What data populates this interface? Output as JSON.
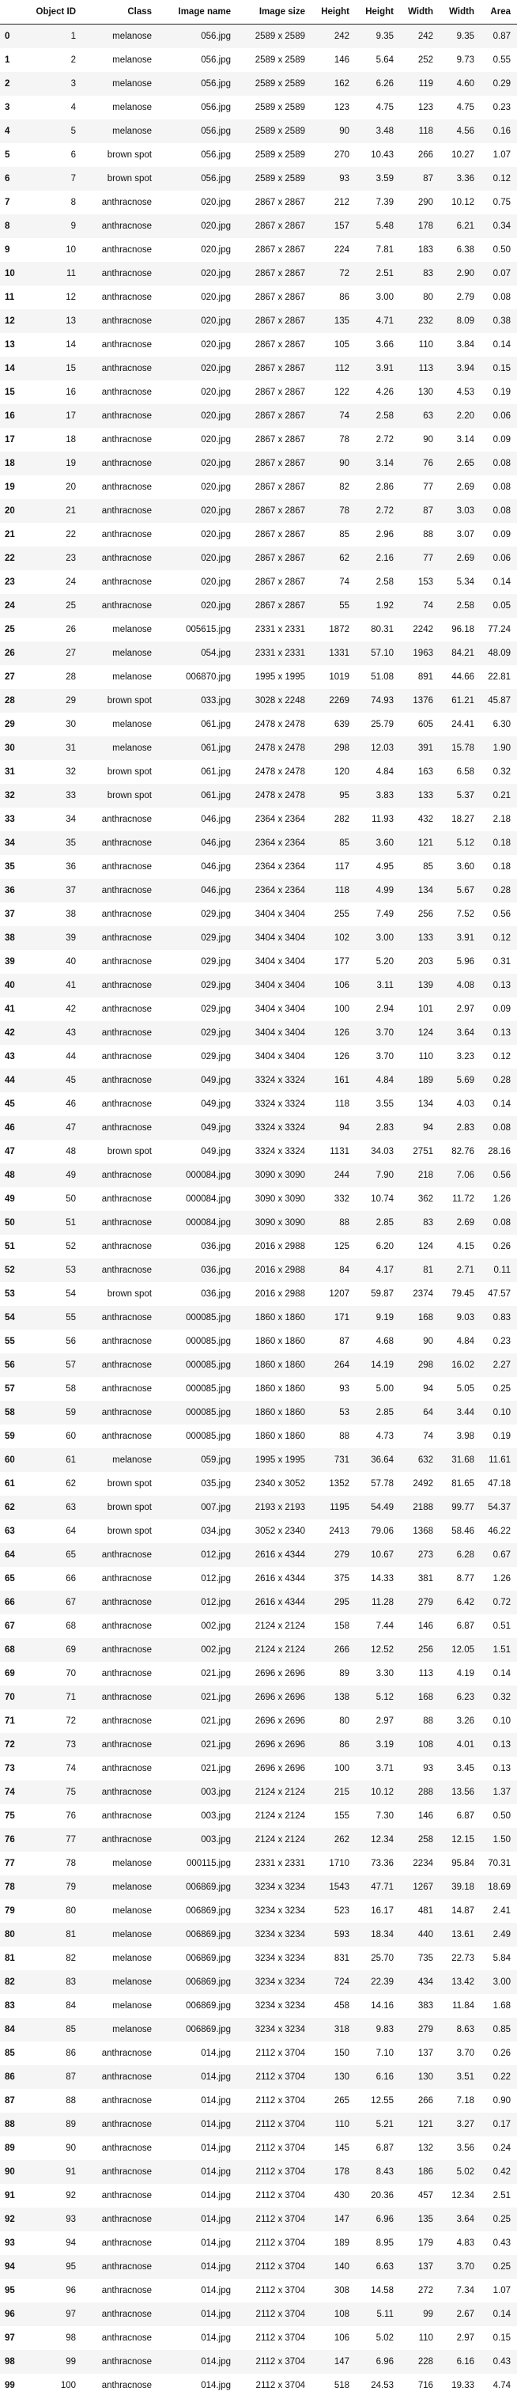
{
  "table": {
    "headers": [
      "",
      "Object ID",
      "Class",
      "Image name",
      "Image size",
      "Height",
      "Height",
      "Width",
      "Width",
      "Area"
    ],
    "rows": [
      [
        "0",
        "1",
        "melanose",
        "056.jpg",
        "2589 x 2589",
        "242",
        "9.35",
        "242",
        "9.35",
        "0.87"
      ],
      [
        "1",
        "2",
        "melanose",
        "056.jpg",
        "2589 x 2589",
        "146",
        "5.64",
        "252",
        "9.73",
        "0.55"
      ],
      [
        "2",
        "3",
        "melanose",
        "056.jpg",
        "2589 x 2589",
        "162",
        "6.26",
        "119",
        "4.60",
        "0.29"
      ],
      [
        "3",
        "4",
        "melanose",
        "056.jpg",
        "2589 x 2589",
        "123",
        "4.75",
        "123",
        "4.75",
        "0.23"
      ],
      [
        "4",
        "5",
        "melanose",
        "056.jpg",
        "2589 x 2589",
        "90",
        "3.48",
        "118",
        "4.56",
        "0.16"
      ],
      [
        "5",
        "6",
        "brown spot",
        "056.jpg",
        "2589 x 2589",
        "270",
        "10.43",
        "266",
        "10.27",
        "1.07"
      ],
      [
        "6",
        "7",
        "brown spot",
        "056.jpg",
        "2589 x 2589",
        "93",
        "3.59",
        "87",
        "3.36",
        "0.12"
      ],
      [
        "7",
        "8",
        "anthracnose",
        "020.jpg",
        "2867 x 2867",
        "212",
        "7.39",
        "290",
        "10.12",
        "0.75"
      ],
      [
        "8",
        "9",
        "anthracnose",
        "020.jpg",
        "2867 x 2867",
        "157",
        "5.48",
        "178",
        "6.21",
        "0.34"
      ],
      [
        "9",
        "10",
        "anthracnose",
        "020.jpg",
        "2867 x 2867",
        "224",
        "7.81",
        "183",
        "6.38",
        "0.50"
      ],
      [
        "10",
        "11",
        "anthracnose",
        "020.jpg",
        "2867 x 2867",
        "72",
        "2.51",
        "83",
        "2.90",
        "0.07"
      ],
      [
        "11",
        "12",
        "anthracnose",
        "020.jpg",
        "2867 x 2867",
        "86",
        "3.00",
        "80",
        "2.79",
        "0.08"
      ],
      [
        "12",
        "13",
        "anthracnose",
        "020.jpg",
        "2867 x 2867",
        "135",
        "4.71",
        "232",
        "8.09",
        "0.38"
      ],
      [
        "13",
        "14",
        "anthracnose",
        "020.jpg",
        "2867 x 2867",
        "105",
        "3.66",
        "110",
        "3.84",
        "0.14"
      ],
      [
        "14",
        "15",
        "anthracnose",
        "020.jpg",
        "2867 x 2867",
        "112",
        "3.91",
        "113",
        "3.94",
        "0.15"
      ],
      [
        "15",
        "16",
        "anthracnose",
        "020.jpg",
        "2867 x 2867",
        "122",
        "4.26",
        "130",
        "4.53",
        "0.19"
      ],
      [
        "16",
        "17",
        "anthracnose",
        "020.jpg",
        "2867 x 2867",
        "74",
        "2.58",
        "63",
        "2.20",
        "0.06"
      ],
      [
        "17",
        "18",
        "anthracnose",
        "020.jpg",
        "2867 x 2867",
        "78",
        "2.72",
        "90",
        "3.14",
        "0.09"
      ],
      [
        "18",
        "19",
        "anthracnose",
        "020.jpg",
        "2867 x 2867",
        "90",
        "3.14",
        "76",
        "2.65",
        "0.08"
      ],
      [
        "19",
        "20",
        "anthracnose",
        "020.jpg",
        "2867 x 2867",
        "82",
        "2.86",
        "77",
        "2.69",
        "0.08"
      ],
      [
        "20",
        "21",
        "anthracnose",
        "020.jpg",
        "2867 x 2867",
        "78",
        "2.72",
        "87",
        "3.03",
        "0.08"
      ],
      [
        "21",
        "22",
        "anthracnose",
        "020.jpg",
        "2867 x 2867",
        "85",
        "2.96",
        "88",
        "3.07",
        "0.09"
      ],
      [
        "22",
        "23",
        "anthracnose",
        "020.jpg",
        "2867 x 2867",
        "62",
        "2.16",
        "77",
        "2.69",
        "0.06"
      ],
      [
        "23",
        "24",
        "anthracnose",
        "020.jpg",
        "2867 x 2867",
        "74",
        "2.58",
        "153",
        "5.34",
        "0.14"
      ],
      [
        "24",
        "25",
        "anthracnose",
        "020.jpg",
        "2867 x 2867",
        "55",
        "1.92",
        "74",
        "2.58",
        "0.05"
      ],
      [
        "25",
        "26",
        "melanose",
        "005615.jpg",
        "2331 x 2331",
        "1872",
        "80.31",
        "2242",
        "96.18",
        "77.24"
      ],
      [
        "26",
        "27",
        "melanose",
        "054.jpg",
        "2331 x 2331",
        "1331",
        "57.10",
        "1963",
        "84.21",
        "48.09"
      ],
      [
        "27",
        "28",
        "melanose",
        "006870.jpg",
        "1995 x 1995",
        "1019",
        "51.08",
        "891",
        "44.66",
        "22.81"
      ],
      [
        "28",
        "29",
        "brown spot",
        "033.jpg",
        "3028 x 2248",
        "2269",
        "74.93",
        "1376",
        "61.21",
        "45.87"
      ],
      [
        "29",
        "30",
        "melanose",
        "061.jpg",
        "2478 x 2478",
        "639",
        "25.79",
        "605",
        "24.41",
        "6.30"
      ],
      [
        "30",
        "31",
        "melanose",
        "061.jpg",
        "2478 x 2478",
        "298",
        "12.03",
        "391",
        "15.78",
        "1.90"
      ],
      [
        "31",
        "32",
        "brown spot",
        "061.jpg",
        "2478 x 2478",
        "120",
        "4.84",
        "163",
        "6.58",
        "0.32"
      ],
      [
        "32",
        "33",
        "brown spot",
        "061.jpg",
        "2478 x 2478",
        "95",
        "3.83",
        "133",
        "5.37",
        "0.21"
      ],
      [
        "33",
        "34",
        "anthracnose",
        "046.jpg",
        "2364 x 2364",
        "282",
        "11.93",
        "432",
        "18.27",
        "2.18"
      ],
      [
        "34",
        "35",
        "anthracnose",
        "046.jpg",
        "2364 x 2364",
        "85",
        "3.60",
        "121",
        "5.12",
        "0.18"
      ],
      [
        "35",
        "36",
        "anthracnose",
        "046.jpg",
        "2364 x 2364",
        "117",
        "4.95",
        "85",
        "3.60",
        "0.18"
      ],
      [
        "36",
        "37",
        "anthracnose",
        "046.jpg",
        "2364 x 2364",
        "118",
        "4.99",
        "134",
        "5.67",
        "0.28"
      ],
      [
        "37",
        "38",
        "anthracnose",
        "029.jpg",
        "3404 x 3404",
        "255",
        "7.49",
        "256",
        "7.52",
        "0.56"
      ],
      [
        "38",
        "39",
        "anthracnose",
        "029.jpg",
        "3404 x 3404",
        "102",
        "3.00",
        "133",
        "3.91",
        "0.12"
      ],
      [
        "39",
        "40",
        "anthracnose",
        "029.jpg",
        "3404 x 3404",
        "177",
        "5.20",
        "203",
        "5.96",
        "0.31"
      ],
      [
        "40",
        "41",
        "anthracnose",
        "029.jpg",
        "3404 x 3404",
        "106",
        "3.11",
        "139",
        "4.08",
        "0.13"
      ],
      [
        "41",
        "42",
        "anthracnose",
        "029.jpg",
        "3404 x 3404",
        "100",
        "2.94",
        "101",
        "2.97",
        "0.09"
      ],
      [
        "42",
        "43",
        "anthracnose",
        "029.jpg",
        "3404 x 3404",
        "126",
        "3.70",
        "124",
        "3.64",
        "0.13"
      ],
      [
        "43",
        "44",
        "anthracnose",
        "029.jpg",
        "3404 x 3404",
        "126",
        "3.70",
        "110",
        "3.23",
        "0.12"
      ],
      [
        "44",
        "45",
        "anthracnose",
        "049.jpg",
        "3324 x 3324",
        "161",
        "4.84",
        "189",
        "5.69",
        "0.28"
      ],
      [
        "45",
        "46",
        "anthracnose",
        "049.jpg",
        "3324 x 3324",
        "118",
        "3.55",
        "134",
        "4.03",
        "0.14"
      ],
      [
        "46",
        "47",
        "anthracnose",
        "049.jpg",
        "3324 x 3324",
        "94",
        "2.83",
        "94",
        "2.83",
        "0.08"
      ],
      [
        "47",
        "48",
        "brown spot",
        "049.jpg",
        "3324 x 3324",
        "1131",
        "34.03",
        "2751",
        "82.76",
        "28.16"
      ],
      [
        "48",
        "49",
        "anthracnose",
        "000084.jpg",
        "3090 x 3090",
        "244",
        "7.90",
        "218",
        "7.06",
        "0.56"
      ],
      [
        "49",
        "50",
        "anthracnose",
        "000084.jpg",
        "3090 x 3090",
        "332",
        "10.74",
        "362",
        "11.72",
        "1.26"
      ],
      [
        "50",
        "51",
        "anthracnose",
        "000084.jpg",
        "3090 x 3090",
        "88",
        "2.85",
        "83",
        "2.69",
        "0.08"
      ],
      [
        "51",
        "52",
        "anthracnose",
        "036.jpg",
        "2016 x 2988",
        "125",
        "6.20",
        "124",
        "4.15",
        "0.26"
      ],
      [
        "52",
        "53",
        "anthracnose",
        "036.jpg",
        "2016 x 2988",
        "84",
        "4.17",
        "81",
        "2.71",
        "0.11"
      ],
      [
        "53",
        "54",
        "brown spot",
        "036.jpg",
        "2016 x 2988",
        "1207",
        "59.87",
        "2374",
        "79.45",
        "47.57"
      ],
      [
        "54",
        "55",
        "anthracnose",
        "000085.jpg",
        "1860 x 1860",
        "171",
        "9.19",
        "168",
        "9.03",
        "0.83"
      ],
      [
        "55",
        "56",
        "anthracnose",
        "000085.jpg",
        "1860 x 1860",
        "87",
        "4.68",
        "90",
        "4.84",
        "0.23"
      ],
      [
        "56",
        "57",
        "anthracnose",
        "000085.jpg",
        "1860 x 1860",
        "264",
        "14.19",
        "298",
        "16.02",
        "2.27"
      ],
      [
        "57",
        "58",
        "anthracnose",
        "000085.jpg",
        "1860 x 1860",
        "93",
        "5.00",
        "94",
        "5.05",
        "0.25"
      ],
      [
        "58",
        "59",
        "anthracnose",
        "000085.jpg",
        "1860 x 1860",
        "53",
        "2.85",
        "64",
        "3.44",
        "0.10"
      ],
      [
        "59",
        "60",
        "anthracnose",
        "000085.jpg",
        "1860 x 1860",
        "88",
        "4.73",
        "74",
        "3.98",
        "0.19"
      ],
      [
        "60",
        "61",
        "melanose",
        "059.jpg",
        "1995 x 1995",
        "731",
        "36.64",
        "632",
        "31.68",
        "11.61"
      ],
      [
        "61",
        "62",
        "brown spot",
        "035.jpg",
        "2340 x 3052",
        "1352",
        "57.78",
        "2492",
        "81.65",
        "47.18"
      ],
      [
        "62",
        "63",
        "brown spot",
        "007.jpg",
        "2193 x 2193",
        "1195",
        "54.49",
        "2188",
        "99.77",
        "54.37"
      ],
      [
        "63",
        "64",
        "brown spot",
        "034.jpg",
        "3052 x 2340",
        "2413",
        "79.06",
        "1368",
        "58.46",
        "46.22"
      ],
      [
        "64",
        "65",
        "anthracnose",
        "012.jpg",
        "2616 x 4344",
        "279",
        "10.67",
        "273",
        "6.28",
        "0.67"
      ],
      [
        "65",
        "66",
        "anthracnose",
        "012.jpg",
        "2616 x 4344",
        "375",
        "14.33",
        "381",
        "8.77",
        "1.26"
      ],
      [
        "66",
        "67",
        "anthracnose",
        "012.jpg",
        "2616 x 4344",
        "295",
        "11.28",
        "279",
        "6.42",
        "0.72"
      ],
      [
        "67",
        "68",
        "anthracnose",
        "002.jpg",
        "2124 x 2124",
        "158",
        "7.44",
        "146",
        "6.87",
        "0.51"
      ],
      [
        "68",
        "69",
        "anthracnose",
        "002.jpg",
        "2124 x 2124",
        "266",
        "12.52",
        "256",
        "12.05",
        "1.51"
      ],
      [
        "69",
        "70",
        "anthracnose",
        "021.jpg",
        "2696 x 2696",
        "89",
        "3.30",
        "113",
        "4.19",
        "0.14"
      ],
      [
        "70",
        "71",
        "anthracnose",
        "021.jpg",
        "2696 x 2696",
        "138",
        "5.12",
        "168",
        "6.23",
        "0.32"
      ],
      [
        "71",
        "72",
        "anthracnose",
        "021.jpg",
        "2696 x 2696",
        "80",
        "2.97",
        "88",
        "3.26",
        "0.10"
      ],
      [
        "72",
        "73",
        "anthracnose",
        "021.jpg",
        "2696 x 2696",
        "86",
        "3.19",
        "108",
        "4.01",
        "0.13"
      ],
      [
        "73",
        "74",
        "anthracnose",
        "021.jpg",
        "2696 x 2696",
        "100",
        "3.71",
        "93",
        "3.45",
        "0.13"
      ],
      [
        "74",
        "75",
        "anthracnose",
        "003.jpg",
        "2124 x 2124",
        "215",
        "10.12",
        "288",
        "13.56",
        "1.37"
      ],
      [
        "75",
        "76",
        "anthracnose",
        "003.jpg",
        "2124 x 2124",
        "155",
        "7.30",
        "146",
        "6.87",
        "0.50"
      ],
      [
        "76",
        "77",
        "anthracnose",
        "003.jpg",
        "2124 x 2124",
        "262",
        "12.34",
        "258",
        "12.15",
        "1.50"
      ],
      [
        "77",
        "78",
        "melanose",
        "000115.jpg",
        "2331 x 2331",
        "1710",
        "73.36",
        "2234",
        "95.84",
        "70.31"
      ],
      [
        "78",
        "79",
        "melanose",
        "006869.jpg",
        "3234 x 3234",
        "1543",
        "47.71",
        "1267",
        "39.18",
        "18.69"
      ],
      [
        "79",
        "80",
        "melanose",
        "006869.jpg",
        "3234 x 3234",
        "523",
        "16.17",
        "481",
        "14.87",
        "2.41"
      ],
      [
        "80",
        "81",
        "melanose",
        "006869.jpg",
        "3234 x 3234",
        "593",
        "18.34",
        "440",
        "13.61",
        "2.49"
      ],
      [
        "81",
        "82",
        "melanose",
        "006869.jpg",
        "3234 x 3234",
        "831",
        "25.70",
        "735",
        "22.73",
        "5.84"
      ],
      [
        "82",
        "83",
        "melanose",
        "006869.jpg",
        "3234 x 3234",
        "724",
        "22.39",
        "434",
        "13.42",
        "3.00"
      ],
      [
        "83",
        "84",
        "melanose",
        "006869.jpg",
        "3234 x 3234",
        "458",
        "14.16",
        "383",
        "11.84",
        "1.68"
      ],
      [
        "84",
        "85",
        "melanose",
        "006869.jpg",
        "3234 x 3234",
        "318",
        "9.83",
        "279",
        "8.63",
        "0.85"
      ],
      [
        "85",
        "86",
        "anthracnose",
        "014.jpg",
        "2112 x 3704",
        "150",
        "7.10",
        "137",
        "3.70",
        "0.26"
      ],
      [
        "86",
        "87",
        "anthracnose",
        "014.jpg",
        "2112 x 3704",
        "130",
        "6.16",
        "130",
        "3.51",
        "0.22"
      ],
      [
        "87",
        "88",
        "anthracnose",
        "014.jpg",
        "2112 x 3704",
        "265",
        "12.55",
        "266",
        "7.18",
        "0.90"
      ],
      [
        "88",
        "89",
        "anthracnose",
        "014.jpg",
        "2112 x 3704",
        "110",
        "5.21",
        "121",
        "3.27",
        "0.17"
      ],
      [
        "89",
        "90",
        "anthracnose",
        "014.jpg",
        "2112 x 3704",
        "145",
        "6.87",
        "132",
        "3.56",
        "0.24"
      ],
      [
        "90",
        "91",
        "anthracnose",
        "014.jpg",
        "2112 x 3704",
        "178",
        "8.43",
        "186",
        "5.02",
        "0.42"
      ],
      [
        "91",
        "92",
        "anthracnose",
        "014.jpg",
        "2112 x 3704",
        "430",
        "20.36",
        "457",
        "12.34",
        "2.51"
      ],
      [
        "92",
        "93",
        "anthracnose",
        "014.jpg",
        "2112 x 3704",
        "147",
        "6.96",
        "135",
        "3.64",
        "0.25"
      ],
      [
        "93",
        "94",
        "anthracnose",
        "014.jpg",
        "2112 x 3704",
        "189",
        "8.95",
        "179",
        "4.83",
        "0.43"
      ],
      [
        "94",
        "95",
        "anthracnose",
        "014.jpg",
        "2112 x 3704",
        "140",
        "6.63",
        "137",
        "3.70",
        "0.25"
      ],
      [
        "95",
        "96",
        "anthracnose",
        "014.jpg",
        "2112 x 3704",
        "308",
        "14.58",
        "272",
        "7.34",
        "1.07"
      ],
      [
        "96",
        "97",
        "anthracnose",
        "014.jpg",
        "2112 x 3704",
        "108",
        "5.11",
        "99",
        "2.67",
        "0.14"
      ],
      [
        "97",
        "98",
        "anthracnose",
        "014.jpg",
        "2112 x 3704",
        "106",
        "5.02",
        "110",
        "2.97",
        "0.15"
      ],
      [
        "98",
        "99",
        "anthracnose",
        "014.jpg",
        "2112 x 3704",
        "147",
        "6.96",
        "228",
        "6.16",
        "0.43"
      ],
      [
        "99",
        "100",
        "anthracnose",
        "014.jpg",
        "2112 x 3704",
        "518",
        "24.53",
        "716",
        "19.33",
        "4.74"
      ]
    ]
  }
}
